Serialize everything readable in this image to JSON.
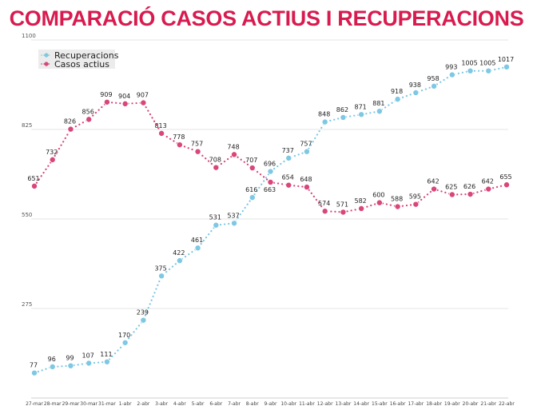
{
  "chart_data": {
    "type": "line",
    "title": "COMPARACIÓ CASOS ACTIUS I RECUPERACIONS",
    "xlabel": "",
    "ylabel": "",
    "ylim": [
      0,
      1100
    ],
    "yticks": [
      "275",
      "550",
      "825",
      "1100"
    ],
    "grid": true,
    "legend_position": "top-left",
    "categories": [
      "27-mar",
      "28-mar",
      "29-mar",
      "30-mar",
      "31-mar",
      "1-abr",
      "2-abr",
      "3-abr",
      "4-abr",
      "5-abr",
      "6-abr",
      "7-abr",
      "8-abr",
      "9-abr",
      "10-abr",
      "11-abr",
      "12-abr",
      "13-abr",
      "14-abr",
      "15-abr",
      "16-abr",
      "17-abr",
      "18-abr",
      "19-abr",
      "20-abr",
      "21-abr",
      "22-abr"
    ],
    "series": [
      {
        "name": "Recuperacions",
        "color": "#7ec8e3",
        "values": [
          77,
          96,
          99,
          107,
          111,
          170,
          239,
          375,
          422,
          461,
          531,
          537,
          616,
          696,
          737,
          757,
          848,
          862,
          871,
          881,
          918,
          938,
          958,
          993,
          1005,
          1005,
          1017
        ]
      },
      {
        "name": "Casos actius",
        "color": "#d8467a",
        "values": [
          651,
          732,
          826,
          856,
          909,
          904,
          907,
          813,
          778,
          757,
          708,
          748,
          707,
          663,
          654,
          648,
          574,
          571,
          582,
          600,
          588,
          595,
          642,
          625,
          626,
          642,
          655
        ]
      }
    ]
  }
}
